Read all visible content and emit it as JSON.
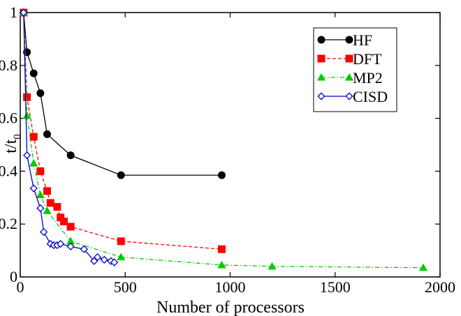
{
  "chart_data": {
    "type": "line",
    "xlabel": "Number of processors",
    "ylabel": "t/t",
    "ylabel_subscript": "0",
    "xlim": [
      0,
      2000
    ],
    "ylim": [
      0,
      1
    ],
    "xticks": [
      0,
      500,
      1000,
      1500,
      2000
    ],
    "yticks": [
      0,
      0.2,
      0.4,
      0.6,
      0.8,
      1
    ],
    "xtick_labels": [
      "0",
      "500",
      "1000",
      "1500",
      "2000"
    ],
    "ytick_labels": [
      "0",
      "0.2",
      "0.4",
      "0.6",
      "0.8",
      "1"
    ],
    "grid": false,
    "legend_position": "top-right",
    "series": [
      {
        "name": "HF",
        "color": "#000000",
        "marker": "circle",
        "line": "solid",
        "x": [
          16,
          32,
          64,
          96,
          128,
          240,
          480,
          960
        ],
        "y": [
          1.0,
          0.85,
          0.77,
          0.695,
          0.54,
          0.46,
          0.385,
          0.385
        ]
      },
      {
        "name": "DFT",
        "color": "#ff0000",
        "marker": "square",
        "line": "dashed",
        "x": [
          16,
          32,
          64,
          96,
          128,
          144,
          176,
          192,
          208,
          240,
          480,
          960
        ],
        "y": [
          1.0,
          0.68,
          0.53,
          0.4,
          0.325,
          0.28,
          0.265,
          0.225,
          0.21,
          0.19,
          0.135,
          0.105
        ]
      },
      {
        "name": "MP2",
        "color": "#00cc00",
        "marker": "triangle",
        "line": "dash-dot",
        "x": [
          16,
          32,
          64,
          96,
          128,
          240,
          480,
          960,
          1200,
          1920
        ],
        "y": [
          1.0,
          0.61,
          0.43,
          0.31,
          0.25,
          0.135,
          0.075,
          0.045,
          0.04,
          0.035
        ]
      },
      {
        "name": "CISD",
        "color": "#0000cc",
        "marker": "diamond",
        "line": "solid",
        "x": [
          16,
          32,
          64,
          96,
          112,
          144,
          160,
          176,
          192,
          240,
          304,
          352,
          368,
          400,
          432,
          448
        ],
        "y": [
          1.0,
          0.46,
          0.335,
          0.26,
          0.17,
          0.125,
          0.12,
          0.12,
          0.125,
          0.115,
          0.105,
          0.06,
          0.075,
          0.065,
          0.06,
          0.055
        ]
      }
    ]
  }
}
